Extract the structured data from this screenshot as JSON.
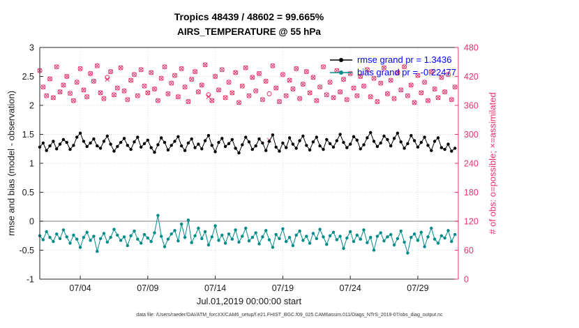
{
  "title": {
    "line1": "Tropics 48439 / 48602 = 99.665%",
    "line2": "AIRS_TEMPERATURE @ 55 hPa"
  },
  "legend": {
    "rmse": "rmse grand pr = 1.3436",
    "bias": "bias grand pr = -0.22477"
  },
  "labels": {
    "left_y": "rmse and bias (model - observation)",
    "right_y": "# of obs: o=possible; ×=assimilated",
    "x": "Jul.01,2019 00:00:00 start",
    "footer": "data file: /Users/raeder/DAI/ATM_forcXX/CAM6_setup/f.e21.FHIST_BGC.f09_025.CAM6assim.011/Diags_NTrS_2019-07/obs_diag_output.nc"
  },
  "colors": {
    "rmse": "#000000",
    "bias": "#008b8b",
    "obs": "#e8336b",
    "legend_text": "#0000ff",
    "zero_line": "#aaaaaa",
    "grid": "#dcdcdc",
    "axis": "#262626"
  },
  "chart_data": {
    "type": "line",
    "title": "Tropics 48439 / 48602 = 99.665% / AIRS_TEMPERATURE @ 55 hPa",
    "xlabel": "Jul.01,2019 00:00:00 start",
    "ylabel_left": "rmse and bias (model - observation)",
    "ylabel_right": "# of obs: o=possible; ×=assimilated",
    "grid": true,
    "legend_position": "top-right-inside",
    "x_start_day": 1.0,
    "x_step_days": 0.25,
    "x_range": [
      1,
      32
    ],
    "x_tick_days": [
      4,
      9,
      14,
      19,
      24,
      29
    ],
    "x_tick_labels": [
      "07/04",
      "07/09",
      "07/14",
      "07/19",
      "07/24",
      "07/29"
    ],
    "left_ylim": [
      -1,
      3
    ],
    "left_ticks": [
      -1,
      -0.5,
      0,
      0.5,
      1,
      1.5,
      2,
      2.5,
      3
    ],
    "right_ylim": [
      0,
      480
    ],
    "right_ticks": [
      0,
      60,
      120,
      180,
      240,
      300,
      360,
      420,
      480
    ],
    "series": [
      {
        "name": "rmse",
        "axis": "left",
        "marker": "dot",
        "grand_mean": 1.3436,
        "values": [
          1.28,
          1.35,
          1.22,
          1.3,
          1.38,
          1.25,
          1.33,
          1.41,
          1.36,
          1.24,
          1.31,
          1.45,
          1.52,
          1.38,
          1.29,
          1.35,
          1.42,
          1.3,
          1.26,
          1.38,
          1.47,
          1.33,
          1.21,
          1.29,
          1.36,
          1.43,
          1.31,
          1.24,
          1.37,
          1.45,
          1.28,
          1.34,
          1.4,
          1.27,
          1.19,
          1.32,
          1.44,
          1.36,
          1.23,
          1.31,
          1.38,
          1.46,
          1.3,
          1.22,
          1.35,
          1.42,
          1.27,
          1.33,
          1.25,
          1.39,
          1.48,
          1.31,
          1.2,
          1.36,
          1.43,
          1.29,
          1.34,
          1.41,
          1.26,
          1.18,
          1.32,
          1.45,
          1.37,
          1.24,
          1.3,
          1.42,
          1.35,
          1.22,
          1.38,
          1.49,
          1.28,
          1.21,
          1.35,
          1.27,
          1.44,
          1.33,
          1.26,
          1.39,
          1.47,
          1.31,
          1.23,
          1.37,
          1.45,
          1.3,
          1.24,
          1.41,
          1.34,
          1.28,
          1.39,
          1.5,
          1.36,
          1.27,
          1.33,
          1.46,
          1.4,
          1.25,
          1.32,
          1.44,
          1.53,
          1.38,
          1.29,
          1.35,
          1.47,
          1.41,
          1.3,
          1.43,
          1.52,
          1.37,
          1.26,
          1.34,
          1.48,
          1.39,
          1.28,
          1.36,
          1.45,
          1.31,
          1.22,
          1.38,
          1.44,
          1.27,
          1.24,
          1.33,
          1.21,
          1.26
        ]
      },
      {
        "name": "bias",
        "axis": "left",
        "marker": "dot",
        "grand_mean": -0.22477,
        "values": [
          -0.25,
          -0.32,
          -0.18,
          -0.28,
          -0.35,
          -0.22,
          -0.3,
          -0.15,
          -0.27,
          -0.38,
          -0.24,
          -0.31,
          -0.45,
          -0.28,
          -0.19,
          -0.33,
          -0.26,
          -0.52,
          -0.3,
          -0.21,
          -0.36,
          -0.28,
          -0.14,
          -0.24,
          -0.33,
          -0.27,
          -0.42,
          -0.25,
          -0.17,
          -0.31,
          -0.38,
          -0.23,
          -0.29,
          -0.35,
          -0.2,
          0.1,
          -0.26,
          -0.44,
          -0.31,
          -0.22,
          -0.16,
          -0.34,
          -0.05,
          -0.28,
          0.02,
          -0.37,
          -0.25,
          -0.12,
          -0.3,
          -0.18,
          -0.41,
          -0.27,
          -0.08,
          -0.33,
          -0.24,
          -0.38,
          -0.22,
          -0.31,
          -0.15,
          -0.36,
          -0.26,
          -0.12,
          -0.34,
          -0.28,
          -0.2,
          -0.39,
          -0.27,
          -0.16,
          -0.32,
          -0.45,
          -0.23,
          -0.3,
          -0.13,
          -0.35,
          -0.28,
          -0.42,
          -0.24,
          -0.17,
          -0.33,
          -0.26,
          -0.38,
          -0.21,
          -0.3,
          -0.14,
          -0.27,
          -0.4,
          -0.25,
          -0.19,
          -0.32,
          -0.26,
          -0.47,
          -0.29,
          -0.18,
          -0.35,
          -0.24,
          -0.31,
          -0.15,
          -0.37,
          -0.28,
          -0.5,
          -0.26,
          -0.2,
          -0.34,
          -0.27,
          -0.23,
          -0.41,
          -0.3,
          -0.17,
          -0.36,
          -0.55,
          -0.28,
          -0.22,
          -0.33,
          -0.19,
          -0.44,
          -0.27,
          -0.12,
          -0.31,
          -0.38,
          -0.25,
          -0.29,
          -0.16,
          -0.35,
          -0.23
        ]
      },
      {
        "name": "possible",
        "axis": "right",
        "marker": "circle",
        "values": [
          432,
          398,
          380,
          415,
          376,
          440,
          388,
          402,
          420,
          385,
          370,
          408,
          436,
          392,
          378,
          426,
          410,
          442,
          386,
          374,
          418,
          430,
          382,
          396,
          438,
          390,
          372,
          412,
          424,
          380,
          434,
          400,
          386,
          428,
          394,
          370,
          416,
          440,
          384,
          406,
          422,
          378,
          436,
          398,
          368,
          414,
          430,
          388,
          402,
          444,
          382,
          370,
          420,
          392,
          434,
          376,
          408,
          386,
          428,
          366,
          400,
          438,
          380,
          418,
          390,
          426,
          372,
          410,
          384,
          442,
          396,
          368,
          424,
          380,
          412,
          394,
          436,
          374,
          404,
          430,
          386,
          418,
          370,
          398,
          440,
          382,
          408,
          376,
          432,
          388,
          414,
          372,
          426,
          396,
          380,
          420,
          400,
          434,
          378,
          416,
          368,
          406,
          438,
          384,
          412,
          374,
          428,
          392,
          440,
          380,
          402,
          366,
          422,
          386,
          408,
          370,
          430,
          394,
          376,
          418,
          388,
          424,
          372,
          398
        ]
      },
      {
        "name": "assimilated",
        "axis": "right",
        "marker": "x",
        "values": [
          432,
          398,
          380,
          415,
          376,
          440,
          388,
          402,
          420,
          385,
          370,
          408,
          436,
          392,
          378,
          426,
          410,
          442,
          386,
          374,
          414,
          430,
          382,
          396,
          438,
          390,
          372,
          412,
          424,
          380,
          434,
          400,
          386,
          428,
          394,
          370,
          416,
          440,
          384,
          406,
          422,
          378,
          436,
          398,
          368,
          414,
          430,
          388,
          402,
          444,
          378,
          370,
          420,
          392,
          434,
          376,
          408,
          386,
          428,
          366,
          400,
          438,
          380,
          418,
          390,
          426,
          372,
          410,
          288,
          442,
          396,
          368,
          424,
          380,
          412,
          394,
          436,
          374,
          404,
          430,
          386,
          418,
          370,
          398,
          440,
          382,
          408,
          376,
          432,
          388,
          414,
          372,
          426,
          396,
          380,
          420,
          400,
          434,
          378,
          416,
          368,
          406,
          438,
          384,
          412,
          374,
          428,
          392,
          440,
          380,
          402,
          366,
          422,
          386,
          408,
          370,
          430,
          394,
          376,
          418,
          388,
          424,
          372,
          398
        ]
      }
    ]
  }
}
